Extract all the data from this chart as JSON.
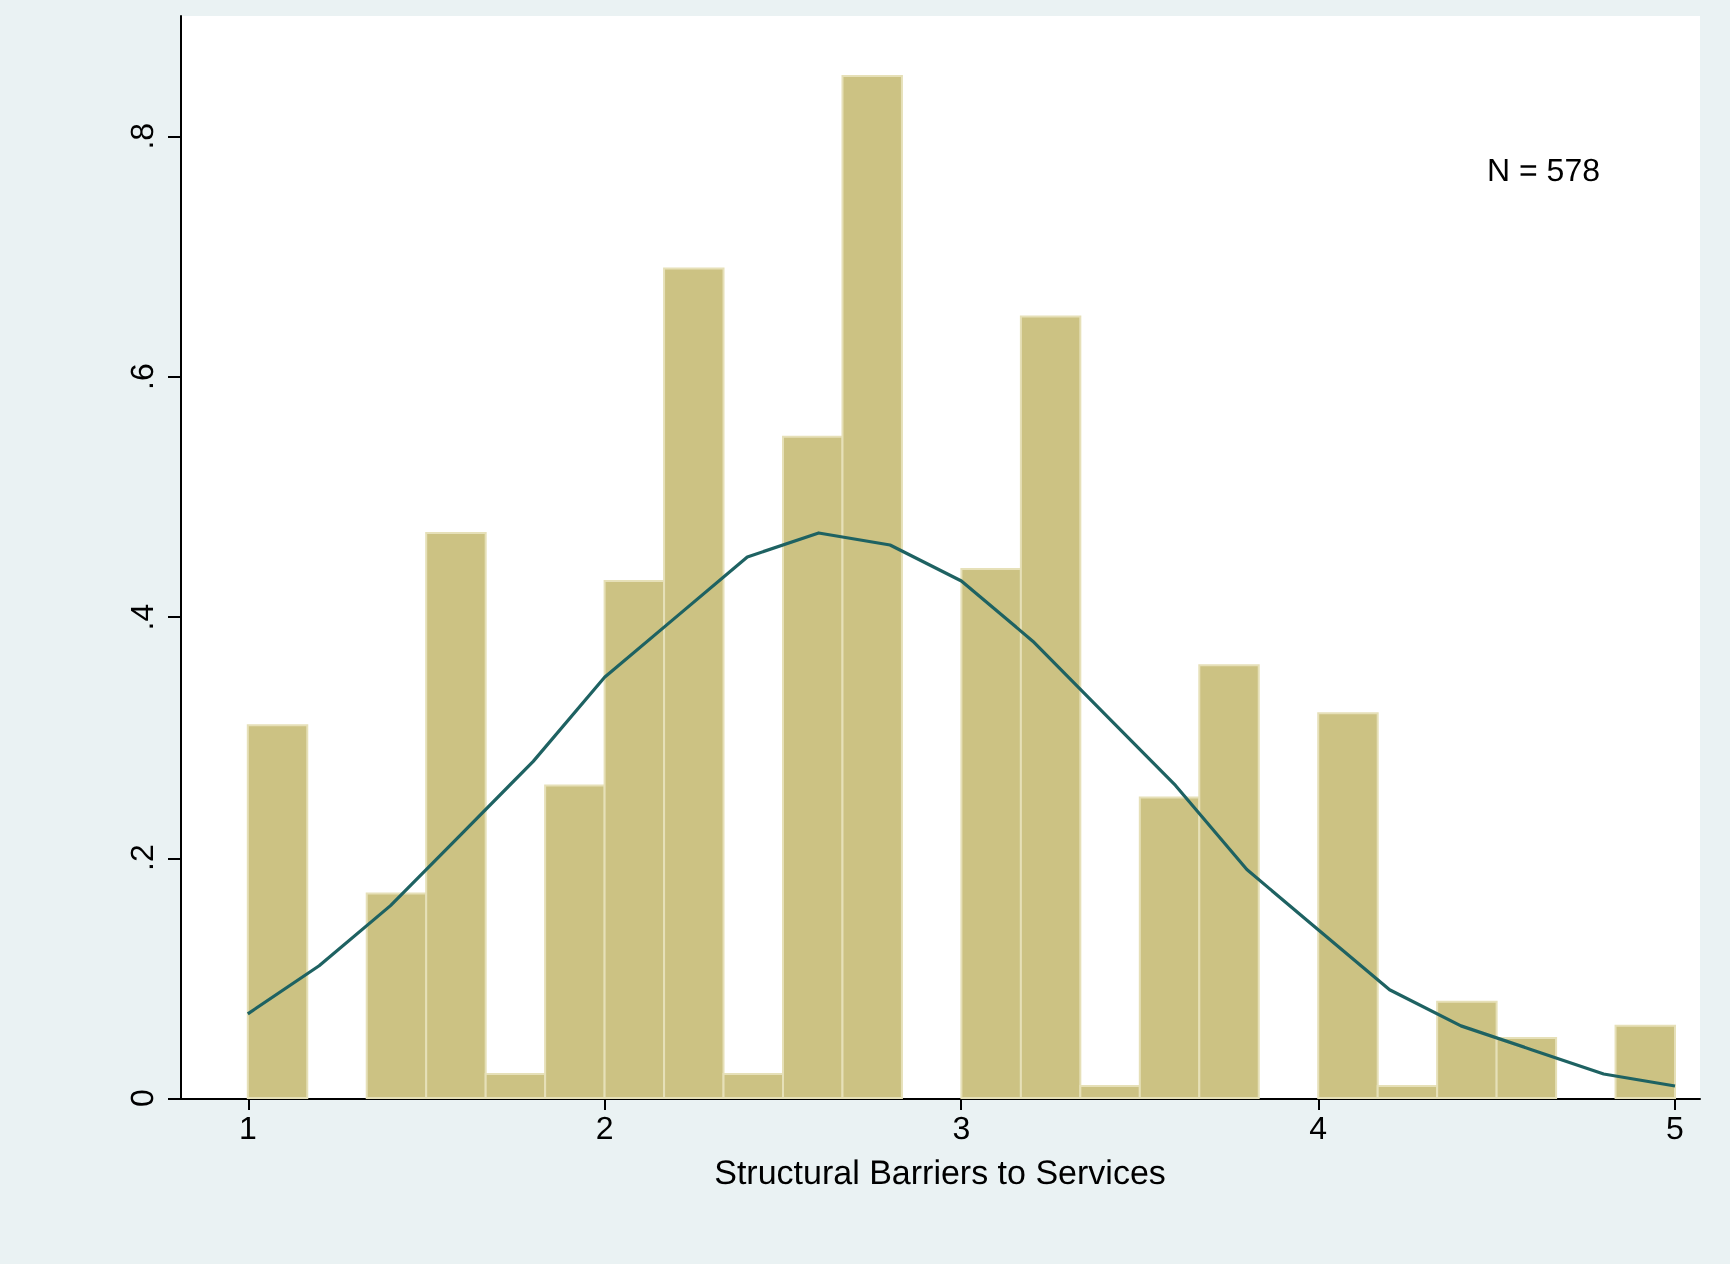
{
  "chart_data": {
    "type": "histogram",
    "xlabel": "Structural Barriers to Services",
    "annotations": [
      "N = 578"
    ],
    "bins": [
      1,
      1.1667,
      1.3333,
      1.5,
      1.6667,
      1.8333,
      2,
      2.1667,
      2.3333,
      2.5,
      2.6667,
      2.8333,
      3,
      3.1667,
      3.3333,
      3.5,
      3.6667,
      3.8333,
      4,
      4.1667,
      4.3333,
      4.5,
      4.6667,
      4.8333,
      5
    ],
    "series": [
      {
        "color": "#ccc283",
        "values": [
          0.31,
          0,
          0.17,
          0.47,
          0.02,
          0.26,
          0.43,
          0.69,
          0.02,
          0.55,
          0.85,
          0,
          0.44,
          0.65,
          0.01,
          0.25,
          0.36,
          0,
          0.32,
          0.01,
          0.08,
          0.05,
          0,
          0.06
        ]
      },
      {
        "type": "line",
        "color": "#1e6262",
        "x": [
          1,
          1.2,
          1.4,
          1.6,
          1.8,
          2,
          2.2,
          2.4,
          2.6,
          2.8,
          3,
          3.2,
          3.4,
          3.6,
          3.8,
          4,
          4.2,
          4.4,
          4.6,
          4.8,
          5
        ],
        "values": [
          0.07,
          0.11,
          0.16,
          0.22,
          0.28,
          0.35,
          0.4,
          0.45,
          0.47,
          0.46,
          0.43,
          0.38,
          0.32,
          0.26,
          0.19,
          0.14,
          0.09,
          0.06,
          0.04,
          0.02,
          0.01
        ]
      }
    ],
    "xlim": [
      0.81,
      5.07
    ],
    "xticks": [
      1,
      2,
      3,
      4,
      5
    ],
    "ylim": [
      0,
      0.9
    ],
    "yticks": [
      0,
      {
        "value": 0.2,
        "label": ".2"
      },
      {
        "value": 0.4,
        "label": ".4"
      },
      {
        "value": 0.6,
        "label": ".6"
      },
      {
        "value": 0.8,
        "label": ".8"
      }
    ],
    "grid": false
  }
}
